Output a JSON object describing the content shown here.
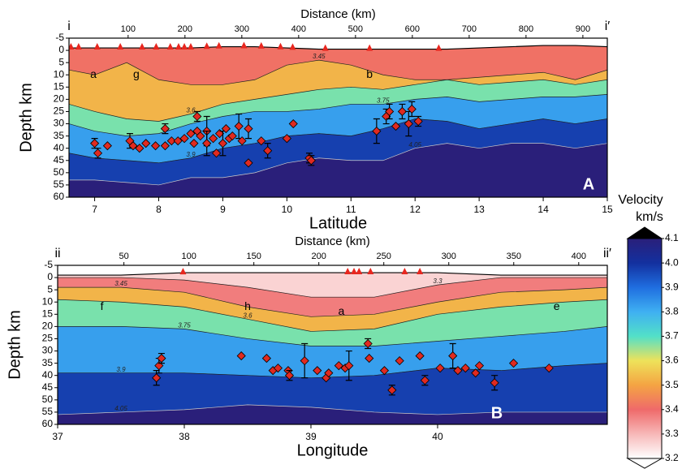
{
  "chart_data": [
    {
      "type": "section",
      "xlabel": "Latitude",
      "ylabel": "Depth km",
      "x2label": "Distance (km)",
      "xlim": [
        6.6,
        15
      ],
      "xticks": [
        7,
        8,
        9,
        10,
        11,
        12,
        13,
        14,
        15
      ],
      "x2lim": [
        -4,
        943
      ],
      "x2ticks": [
        100,
        200,
        300,
        400,
        500,
        600,
        700,
        800,
        900
      ],
      "ylim": [
        60,
        -5
      ],
      "yticks": [
        -5,
        0,
        5,
        10,
        15,
        20,
        25,
        30,
        35,
        40,
        45,
        50,
        55,
        60
      ],
      "corner_left": "i",
      "corner_right": "i′",
      "panel_label": "A",
      "annotations": [
        {
          "text": "a",
          "x": 6.98,
          "depth": 10
        },
        {
          "text": "g",
          "x": 7.65,
          "depth": 10
        },
        {
          "text": "b",
          "x": 11.29,
          "depth": 10
        }
      ],
      "field": {
        "x": [
          6.6,
          7,
          7.5,
          8,
          8.5,
          9,
          9.5,
          10,
          10.5,
          11,
          11.5,
          12,
          12.5,
          13,
          13.5,
          14,
          14.5,
          15
        ],
        "surface": [
          -1,
          -1,
          -1,
          -1,
          -1,
          -1.5,
          -1.5,
          -1,
          -0.5,
          -0.5,
          -0.5,
          -0.5,
          -0.5,
          -1,
          -1.5,
          -2,
          -2,
          -1.5
        ],
        "contours": [
          {
            "value": 3.45,
            "depths": [
              8,
              10,
              5,
              12,
              14,
              14,
              12,
              6,
              4,
              6,
              10,
              12,
              12,
              11,
              10,
              9,
              12,
              8
            ]
          },
          {
            "value": 3.6,
            "depths": [
              22,
              25,
              28,
              29,
              26,
              22,
              20,
              18,
              16,
              15,
              16,
              14,
              12,
              14,
              13,
              12,
              14,
              12
            ]
          },
          {
            "value": 3.75,
            "depths": [
              30,
              33,
              35,
              34,
              30,
              27,
              25,
              25,
              24,
              22,
              22,
              20,
              19,
              21,
              20,
              19,
              19,
              18
            ]
          },
          {
            "value": 3.9,
            "depths": [
              42,
              44,
              45,
              46,
              44,
              40,
              38,
              35,
              34,
              35,
              32,
              28,
              29,
              32,
              30,
              28,
              30,
              28
            ]
          },
          {
            "value": 4.05,
            "depths": [
              53,
              53,
              54,
              55,
              52,
              52,
              50,
              46,
              44,
              45,
              45,
              40,
              38,
              40,
              38,
              38,
              40,
              38
            ]
          }
        ]
      },
      "stations": [
        6.63,
        6.75,
        7.04,
        7.4,
        7.74,
        7.96,
        8.18,
        8.31,
        8.4,
        8.5,
        8.75,
        8.94,
        9.33,
        9.6,
        9.9,
        10.09,
        10.6,
        11.29,
        12.37
      ],
      "station_color": "#e8271f",
      "marker_color": "#e02a20",
      "points": {
        "x": [
          7.0,
          7.05,
          7.2,
          7.55,
          7.6,
          7.7,
          7.8,
          7.95,
          8.1,
          8.1,
          8.2,
          8.3,
          8.4,
          8.5,
          8.55,
          8.6,
          8.6,
          8.65,
          8.75,
          8.75,
          8.85,
          8.9,
          8.95,
          9.0,
          9.05,
          9.1,
          9.15,
          9.25,
          9.3,
          9.4,
          9.4,
          9.6,
          9.7,
          10.0,
          10.1,
          10.35,
          10.38,
          11.4,
          11.55,
          11.6,
          11.7,
          11.8,
          11.9,
          11.95,
          12.05
        ],
        "depth": [
          38,
          42,
          39,
          37,
          39,
          40,
          38,
          39,
          32,
          39,
          37,
          37,
          36,
          34,
          38,
          27,
          33,
          35,
          33,
          38,
          36,
          42,
          34,
          38,
          32,
          36,
          35,
          31,
          37,
          46,
          32,
          37,
          41,
          36,
          30,
          44,
          45,
          33,
          27,
          25,
          31,
          25,
          30,
          24,
          29
        ],
        "error": [
          2,
          2,
          null,
          3,
          null,
          null,
          null,
          null,
          2,
          null,
          null,
          null,
          null,
          null,
          null,
          2,
          null,
          null,
          6,
          5,
          null,
          null,
          null,
          5,
          null,
          null,
          null,
          5,
          null,
          null,
          4,
          null,
          3,
          null,
          null,
          2,
          2,
          5,
          3,
          3,
          null,
          3,
          5,
          3,
          2
        ]
      }
    },
    {
      "type": "section",
      "xlabel": "Longitude",
      "ylabel": "Depth km",
      "x2label": "Distance (km)",
      "xlim": [
        37,
        41.34
      ],
      "xticks": [
        37,
        38,
        39,
        40
      ],
      "x2lim": [
        -1,
        422
      ],
      "x2ticks": [
        50,
        100,
        150,
        200,
        250,
        300,
        350,
        400
      ],
      "ylim": [
        60,
        -5
      ],
      "yticks": [
        -5,
        0,
        5,
        10,
        15,
        20,
        25,
        30,
        35,
        40,
        45,
        50,
        55,
        60
      ],
      "corner_left": "ii",
      "corner_right": "ii′",
      "panel_label": "B",
      "annotations": [
        {
          "text": "f",
          "x": 37.35,
          "depth": 12
        },
        {
          "text": "h",
          "x": 38.5,
          "depth": 12
        },
        {
          "text": "a",
          "x": 39.24,
          "depth": 14
        },
        {
          "text": "e",
          "x": 40.94,
          "depth": 12
        }
      ],
      "field": {
        "x": [
          37,
          37.5,
          38,
          38.5,
          39,
          39.5,
          40,
          40.5,
          41,
          41.34
        ],
        "surface": [
          -1,
          -1,
          -2,
          -2,
          -2,
          -2,
          -2,
          -1,
          -1,
          -1
        ],
        "contours": [
          {
            "value": 3.3,
            "depths": [
              0,
              0,
              1,
              4,
              8,
              8,
              3,
              0,
              0,
              0
            ]
          },
          {
            "value": 3.45,
            "depths": [
              4,
              4,
              6,
              12,
              16,
              15,
              10,
              6,
              5,
              4
            ]
          },
          {
            "value": 3.6,
            "depths": [
              9,
              10,
              12,
              17,
              22,
              21,
              15,
              12,
              10,
              9
            ]
          },
          {
            "value": 3.75,
            "depths": [
              20,
              20,
              21,
              25,
              28,
              28,
              26,
              24,
              22,
              20
            ]
          },
          {
            "value": 3.9,
            "depths": [
              39,
              39,
              39,
              40,
              41,
              40,
              37,
              38,
              36,
              35
            ]
          },
          {
            "value": 4.05,
            "depths": [
              56,
              55,
              54,
              52,
              53,
              55,
              56,
              55,
              55,
              55
            ]
          }
        ]
      },
      "stations": [
        37.99,
        39.29,
        39.34,
        39.38,
        39.47,
        39.74,
        39.86
      ],
      "station_color": "#e8271f",
      "marker_color": "#e02a20",
      "points": {
        "x": [
          37.78,
          37.8,
          37.82,
          38.45,
          38.65,
          38.7,
          38.74,
          38.82,
          38.83,
          38.95,
          39.05,
          39.12,
          39.14,
          39.22,
          39.27,
          39.3,
          39.45,
          39.46,
          39.58,
          39.64,
          39.7,
          39.86,
          39.9,
          40.02,
          40.12,
          40.16,
          40.22,
          40.3,
          40.33,
          40.45,
          40.6,
          40.88
        ],
        "depth": [
          41,
          36,
          33,
          32,
          33,
          38,
          37,
          38,
          40,
          34,
          38,
          41,
          39,
          36,
          37,
          36,
          27,
          33,
          38,
          46,
          34,
          32,
          42,
          37,
          32,
          38,
          37,
          39,
          36,
          43,
          35,
          37
        ],
        "error": [
          3,
          3,
          2,
          null,
          null,
          null,
          null,
          null,
          2,
          7,
          null,
          null,
          null,
          null,
          null,
          6,
          2,
          null,
          null,
          2,
          null,
          null,
          2,
          null,
          5,
          null,
          null,
          null,
          null,
          3,
          null,
          null
        ]
      }
    }
  ],
  "colorbar": {
    "title": "Velocity",
    "unit": "km/s",
    "lim": [
      3.2,
      4.1
    ],
    "ticks": [
      {
        "value": 4.1,
        "label": "4.1"
      },
      {
        "value": 4,
        "label": "4.0"
      },
      {
        "value": 3.9,
        "label": "3.9"
      },
      {
        "value": 3.8,
        "label": "3.8"
      },
      {
        "value": 3.7,
        "label": "3.7"
      },
      {
        "value": 3.6,
        "label": "3.6"
      },
      {
        "value": 3.5,
        "label": "3.5"
      },
      {
        "value": 3.4,
        "label": "3.4"
      },
      {
        "value": 3.3,
        "label": "3.3"
      },
      {
        "value": 3.2,
        "label": "3.2"
      }
    ],
    "colors": [
      "#2a1f7a",
      "#13309f",
      "#1f6ee0",
      "#3fb0f2",
      "#52e0c8",
      "#eee25a",
      "#f4a443",
      "#ef6a6a",
      "#f7b8b8",
      "#ffffff"
    ],
    "over_color": "#000000",
    "under_color": "#ffffff"
  }
}
